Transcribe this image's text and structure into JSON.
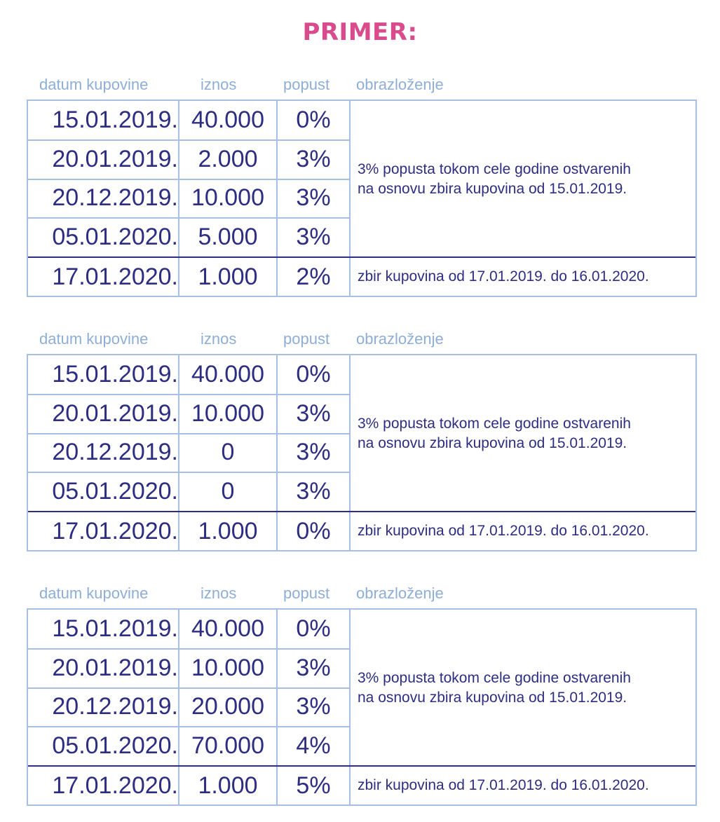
{
  "title": "PRIMER:",
  "headers": {
    "date": "datum kupovine",
    "amount": "iznos",
    "discount": "popust",
    "note": "obrazloženje"
  },
  "tables": [
    {
      "rows": [
        {
          "date": "15.01.2019.",
          "amount": "40.000",
          "discount": "0%"
        },
        {
          "date": "20.01.2019.",
          "amount": "2.000",
          "discount": "3%"
        },
        {
          "date": "20.12.2019.",
          "amount": "10.000",
          "discount": "3%"
        },
        {
          "date": "05.01.2020.",
          "amount": "5.000",
          "discount": "3%"
        },
        {
          "date": "17.01.2020.",
          "amount": "1.000",
          "discount": "2%"
        }
      ],
      "note_top_line1": "3% popusta tokom cele godine ostvarenih",
      "note_top_line2": "na osnovu zbira kupovina od 15.01.2019.",
      "note_bottom": "zbir kupovina od 17.01.2019. do 16.01.2020."
    },
    {
      "rows": [
        {
          "date": "15.01.2019.",
          "amount": "40.000",
          "discount": "0%"
        },
        {
          "date": "20.01.2019.",
          "amount": "10.000",
          "discount": "3%"
        },
        {
          "date": "20.12.2019.",
          "amount": "0",
          "discount": "3%"
        },
        {
          "date": "05.01.2020.",
          "amount": "0",
          "discount": "3%"
        },
        {
          "date": "17.01.2020.",
          "amount": "1.000",
          "discount": "0%"
        }
      ],
      "note_top_line1": "3% popusta tokom cele godine ostvarenih",
      "note_top_line2": "na osnovu zbira kupovina od 15.01.2019.",
      "note_bottom": "zbir kupovina od 17.01.2019. do 16.01.2020."
    },
    {
      "rows": [
        {
          "date": "15.01.2019.",
          "amount": "40.000",
          "discount": "0%"
        },
        {
          "date": "20.01.2019.",
          "amount": "10.000",
          "discount": "3%"
        },
        {
          "date": "20.12.2019.",
          "amount": "20.000",
          "discount": "3%"
        },
        {
          "date": "05.01.2020.",
          "amount": "70.000",
          "discount": "4%"
        },
        {
          "date": "17.01.2020.",
          "amount": "1.000",
          "discount": "5%"
        }
      ],
      "note_top_line1": "3% popusta tokom cele godine ostvarenih",
      "note_top_line2": "na osnovu zbira kupovina od 15.01.2019.",
      "note_bottom": "zbir kupovina od 17.01.2019. do 16.01.2020."
    }
  ]
}
